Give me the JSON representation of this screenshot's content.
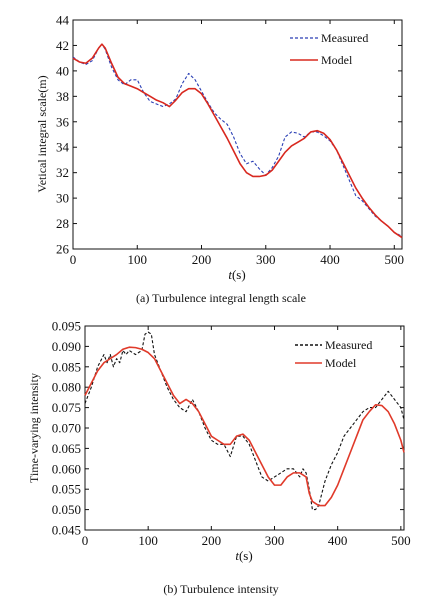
{
  "chart_data": [
    {
      "type": "line",
      "caption": "(a) Turbulence integral length scale",
      "xlabel_italic": "t",
      "xlabel_unit": "(s)",
      "ylabel": "Vetical integral scale(m)",
      "xlim": [
        0,
        512
      ],
      "ylim": [
        26,
        44
      ],
      "xticks": [
        0,
        100,
        200,
        300,
        400,
        500
      ],
      "yticks": [
        26,
        28,
        30,
        32,
        34,
        36,
        38,
        40,
        42,
        44
      ],
      "legend_position": "top-right",
      "series": [
        {
          "name": "Measured",
          "style": "dashed",
          "color": "#2a3fb5",
          "x": [
            0,
            10,
            20,
            30,
            40,
            45,
            50,
            60,
            70,
            80,
            90,
            100,
            110,
            120,
            130,
            140,
            150,
            160,
            170,
            180,
            190,
            200,
            210,
            220,
            230,
            240,
            250,
            260,
            270,
            280,
            290,
            300,
            310,
            320,
            330,
            340,
            350,
            360,
            370,
            380,
            390,
            400,
            410,
            420,
            430,
            440,
            450,
            460,
            470,
            480,
            490,
            500,
            512
          ],
          "values": [
            41.1,
            40.7,
            40.5,
            40.8,
            41.8,
            42.1,
            41.7,
            40.3,
            39.3,
            38.9,
            39.3,
            39.3,
            38.3,
            37.6,
            37.4,
            37.2,
            37.4,
            37.8,
            39.0,
            39.8,
            39.3,
            38.4,
            37.5,
            36.7,
            36.2,
            35.8,
            34.8,
            33.5,
            32.7,
            32.9,
            32.3,
            31.8,
            32.4,
            33.3,
            34.8,
            35.2,
            35.1,
            34.8,
            35.2,
            35.2,
            34.9,
            34.5,
            33.8,
            32.6,
            31.4,
            30.2,
            29.8,
            29.2,
            28.6,
            28.2,
            27.8,
            27.3,
            27.0
          ]
        },
        {
          "name": "Model",
          "style": "solid",
          "color": "#d8281f",
          "x": [
            0,
            10,
            20,
            30,
            40,
            45,
            50,
            60,
            70,
            80,
            90,
            100,
            110,
            120,
            130,
            140,
            150,
            160,
            170,
            180,
            190,
            200,
            210,
            220,
            230,
            240,
            250,
            260,
            270,
            280,
            290,
            300,
            310,
            320,
            330,
            340,
            350,
            360,
            370,
            380,
            390,
            400,
            410,
            420,
            430,
            440,
            450,
            460,
            470,
            480,
            490,
            500,
            512
          ],
          "values": [
            41.0,
            40.7,
            40.6,
            41.0,
            41.8,
            42.1,
            41.8,
            40.6,
            39.5,
            39.0,
            38.8,
            38.6,
            38.3,
            38.0,
            37.7,
            37.5,
            37.2,
            37.7,
            38.3,
            38.6,
            38.6,
            38.2,
            37.4,
            36.5,
            35.6,
            34.7,
            33.7,
            32.7,
            32.0,
            31.7,
            31.7,
            31.8,
            32.2,
            32.9,
            33.6,
            34.1,
            34.4,
            34.7,
            35.2,
            35.3,
            35.1,
            34.6,
            33.8,
            32.8,
            31.8,
            30.8,
            30.0,
            29.3,
            28.7,
            28.2,
            27.8,
            27.3,
            26.9
          ]
        }
      ]
    },
    {
      "type": "line",
      "caption": "(b) Turbulence intensity",
      "xlabel_italic": "t",
      "xlabel_unit": "(s)",
      "ylabel": "Time-varying intensity",
      "xlim": [
        0,
        505
      ],
      "ylim": [
        0.045,
        0.095
      ],
      "xticks": [
        0,
        100,
        200,
        300,
        400,
        500
      ],
      "yticks": [
        "0.045",
        "0.050",
        "0.055",
        "0.060",
        "0.065",
        "0.070",
        "0.075",
        "0.080",
        "0.085",
        "0.090",
        "0.095"
      ],
      "legend_position": "top-right",
      "series": [
        {
          "name": "Measured",
          "style": "dashed",
          "color": "#111111",
          "x": [
            0,
            10,
            20,
            30,
            35,
            40,
            45,
            50,
            55,
            60,
            65,
            70,
            80,
            90,
            95,
            100,
            105,
            110,
            115,
            120,
            130,
            140,
            150,
            160,
            170,
            180,
            190,
            200,
            210,
            220,
            230,
            240,
            250,
            260,
            270,
            280,
            290,
            300,
            310,
            320,
            330,
            340,
            345,
            350,
            355,
            360,
            365,
            370,
            375,
            380,
            390,
            400,
            410,
            420,
            430,
            440,
            450,
            460,
            470,
            480,
            490,
            500,
            505
          ],
          "values": [
            0.076,
            0.08,
            0.085,
            0.088,
            0.086,
            0.088,
            0.085,
            0.087,
            0.086,
            0.089,
            0.088,
            0.089,
            0.088,
            0.089,
            0.093,
            0.0935,
            0.093,
            0.088,
            0.086,
            0.084,
            0.08,
            0.077,
            0.075,
            0.074,
            0.077,
            0.074,
            0.07,
            0.067,
            0.066,
            0.066,
            0.063,
            0.068,
            0.068,
            0.066,
            0.062,
            0.058,
            0.057,
            0.058,
            0.059,
            0.06,
            0.06,
            0.058,
            0.06,
            0.059,
            0.055,
            0.05,
            0.05,
            0.051,
            0.054,
            0.057,
            0.061,
            0.064,
            0.068,
            0.07,
            0.072,
            0.074,
            0.075,
            0.075,
            0.077,
            0.079,
            0.077,
            0.075,
            0.072
          ]
        },
        {
          "name": "Model",
          "style": "solid",
          "color": "#e03a2a",
          "x": [
            0,
            10,
            20,
            30,
            40,
            50,
            60,
            70,
            80,
            90,
            100,
            110,
            120,
            130,
            140,
            150,
            160,
            170,
            180,
            190,
            200,
            210,
            220,
            230,
            240,
            250,
            260,
            270,
            280,
            290,
            300,
            310,
            320,
            330,
            340,
            350,
            355,
            360,
            370,
            380,
            390,
            400,
            410,
            420,
            430,
            440,
            450,
            460,
            470,
            480,
            490,
            500,
            505
          ],
          "values": [
            0.078,
            0.081,
            0.084,
            0.086,
            0.087,
            0.088,
            0.0893,
            0.0898,
            0.0897,
            0.0893,
            0.0885,
            0.087,
            0.084,
            0.081,
            0.078,
            0.076,
            0.077,
            0.076,
            0.074,
            0.071,
            0.068,
            0.067,
            0.066,
            0.066,
            0.068,
            0.0685,
            0.067,
            0.064,
            0.061,
            0.058,
            0.056,
            0.056,
            0.058,
            0.059,
            0.059,
            0.058,
            0.054,
            0.052,
            0.051,
            0.051,
            0.053,
            0.056,
            0.06,
            0.064,
            0.068,
            0.072,
            0.074,
            0.0757,
            0.0755,
            0.074,
            0.071,
            0.067,
            0.064
          ]
        }
      ]
    }
  ]
}
